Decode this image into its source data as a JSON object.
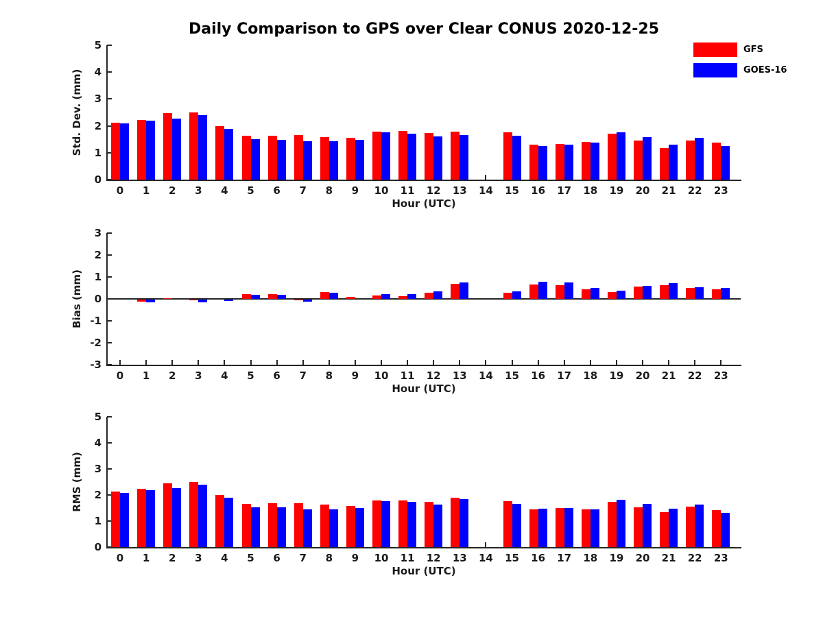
{
  "title": "Daily Comparison to GPS over Clear CONUS 2020-12-25",
  "legend": [
    {
      "label": "GFS",
      "color": "#ff0000"
    },
    {
      "label": "GOES-16",
      "color": "#0000ff"
    }
  ],
  "colors": {
    "gfs": "#ff0000",
    "goes16": "#0000ff",
    "axis": "#262626",
    "text": "#1a1a1a"
  },
  "chart_data": [
    {
      "type": "bar",
      "ylabel": "Std. Dev. (mm)",
      "xlabel": "Hour (UTC)",
      "ylim": [
        0,
        5
      ],
      "yticks": [
        0,
        1,
        2,
        3,
        4,
        5
      ],
      "grid": false,
      "legend_position": "top-right",
      "categories": [
        "0",
        "1",
        "2",
        "3",
        "4",
        "5",
        "6",
        "7",
        "8",
        "9",
        "10",
        "11",
        "12",
        "13",
        "14",
        "15",
        "16",
        "17",
        "18",
        "19",
        "20",
        "21",
        "22",
        "23"
      ],
      "series": [
        {
          "name": "GFS",
          "color": "#ff0000",
          "values": [
            2.12,
            2.23,
            2.47,
            2.5,
            2.0,
            1.63,
            1.64,
            1.67,
            1.59,
            1.55,
            1.79,
            1.8,
            1.73,
            1.79,
            null,
            1.77,
            1.3,
            1.33,
            1.4,
            1.72,
            1.45,
            1.18,
            1.46,
            1.37
          ]
        },
        {
          "name": "GOES-16",
          "color": "#0000ff",
          "values": [
            2.09,
            2.2,
            2.28,
            2.4,
            1.88,
            1.51,
            1.48,
            1.43,
            1.44,
            1.49,
            1.76,
            1.72,
            1.6,
            1.67,
            null,
            1.63,
            1.26,
            1.3,
            1.38,
            1.77,
            1.57,
            1.3,
            1.56,
            1.26
          ]
        }
      ]
    },
    {
      "type": "bar",
      "ylabel": "Bias (mm)",
      "xlabel": "Hour (UTC)",
      "ylim": [
        -3,
        3
      ],
      "yticks": [
        3,
        2,
        1,
        0,
        -1,
        -2,
        -3
      ],
      "grid": false,
      "categories": [
        "0",
        "1",
        "2",
        "3",
        "4",
        "5",
        "6",
        "7",
        "8",
        "9",
        "10",
        "11",
        "12",
        "13",
        "14",
        "15",
        "16",
        "17",
        "18",
        "19",
        "20",
        "21",
        "22",
        "23"
      ],
      "series": [
        {
          "name": "GFS",
          "color": "#ff0000",
          "values": [
            0.0,
            -0.1,
            0.03,
            -0.03,
            -0.01,
            0.22,
            0.22,
            -0.02,
            0.32,
            0.08,
            0.17,
            0.13,
            0.29,
            0.7,
            null,
            0.29,
            0.66,
            0.64,
            0.43,
            0.3,
            0.55,
            0.62,
            0.51,
            0.45
          ]
        },
        {
          "name": "GOES-16",
          "color": "#0000ff",
          "values": [
            0.0,
            -0.12,
            0.01,
            -0.13,
            -0.05,
            0.18,
            0.18,
            -0.08,
            0.28,
            0.01,
            0.21,
            0.21,
            0.33,
            0.76,
            null,
            0.35,
            0.79,
            0.74,
            0.49,
            0.38,
            0.6,
            0.73,
            0.54,
            0.51
          ]
        }
      ]
    },
    {
      "type": "bar",
      "ylabel": "RMS (mm)",
      "xlabel": "Hour (UTC)",
      "ylim": [
        0,
        5
      ],
      "yticks": [
        0,
        1,
        2,
        3,
        4,
        5
      ],
      "grid": false,
      "categories": [
        "0",
        "1",
        "2",
        "3",
        "4",
        "5",
        "6",
        "7",
        "8",
        "9",
        "10",
        "11",
        "12",
        "13",
        "14",
        "15",
        "16",
        "17",
        "18",
        "19",
        "20",
        "21",
        "22",
        "23"
      ],
      "series": [
        {
          "name": "GFS",
          "color": "#ff0000",
          "values": [
            2.13,
            2.23,
            2.46,
            2.49,
            2.01,
            1.65,
            1.68,
            1.68,
            1.62,
            1.59,
            1.79,
            1.8,
            1.73,
            1.9,
            null,
            1.76,
            1.44,
            1.49,
            1.46,
            1.74,
            1.52,
            1.33,
            1.54,
            1.42
          ]
        },
        {
          "name": "GOES-16",
          "color": "#0000ff",
          "values": [
            2.07,
            2.18,
            2.26,
            2.4,
            1.89,
            1.52,
            1.52,
            1.44,
            1.44,
            1.51,
            1.75,
            1.73,
            1.62,
            1.83,
            null,
            1.65,
            1.47,
            1.5,
            1.46,
            1.81,
            1.67,
            1.47,
            1.64,
            1.32
          ]
        }
      ]
    }
  ]
}
